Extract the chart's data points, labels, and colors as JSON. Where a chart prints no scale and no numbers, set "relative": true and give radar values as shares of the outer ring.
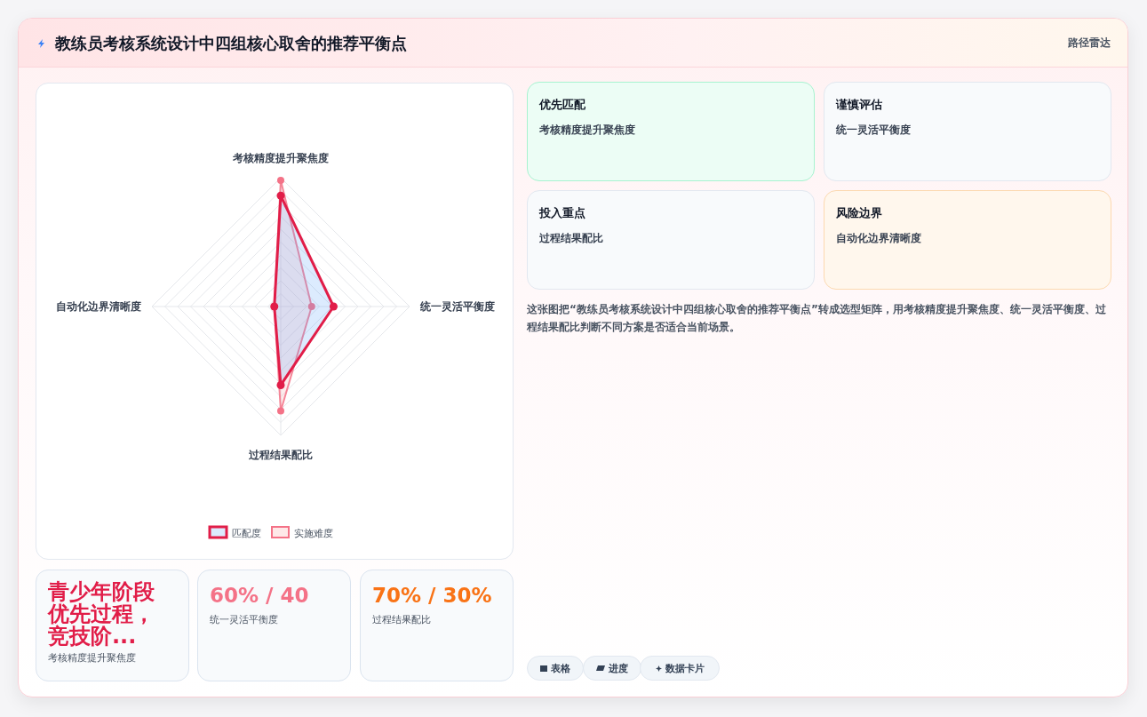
{
  "chart_data": {
    "type": "radar",
    "title": "教练员考核系统设计中四组核心取舍的推荐平衡点",
    "subtitle": "路径雷达",
    "categories": [
      "考核精度提升聚焦度",
      "统一灵活平衡度",
      "过程结果配比",
      "自动化边界清晰度"
    ],
    "relative": true,
    "grid": true,
    "legend": "bottom",
    "marker": "circle",
    "series": [
      {
        "name": "匹配度",
        "color": "#e11d48",
        "values": [
          0.86,
          0.41,
          0.61,
          0.05
        ]
      },
      {
        "name": "实施难度",
        "color": "#f47287",
        "values": [
          0.98,
          0.24,
          0.81,
          0.05
        ]
      }
    ],
    "annotations": [
      "优先匹配",
      "考核精度提升聚焦度",
      "谨慎评估",
      "统一灵活平衡度",
      "投入重点",
      "过程结果配比",
      "风险边界",
      "自动化边界清晰度",
      "这张图把“教练员考核系统设计中四组核心取舍的推荐平衡点”转成选型矩阵，用考核精度提升聚焦度、统一灵活平衡度、过程结果配比判断不同方案是否适合当前场景。",
      "青少年阶段优先过程，竞技阶...",
      "考核精度提升聚焦度",
      "60% / 40",
      "统一灵活平衡度",
      "70% / 30%",
      "过程结果配比",
      "表格",
      "进度",
      "数据卡片"
    ]
  }
}
